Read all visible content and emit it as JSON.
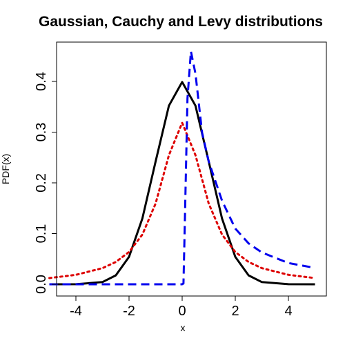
{
  "chart_data": {
    "type": "line",
    "title": "Gaussian, Cauchy and Levy distributions",
    "xlabel": "x",
    "ylabel": "PDF(x)",
    "xlim": [
      -5,
      5
    ],
    "ylim": [
      0,
      0.45
    ],
    "xticks": [
      -4,
      -2,
      0,
      2,
      4
    ],
    "yticks": [
      0.0,
      0.1,
      0.2,
      0.3,
      0.4
    ],
    "xtick_labels": [
      "-4",
      "-2",
      "0",
      "2",
      "4"
    ],
    "ytick_labels": [
      "0.0",
      "0.1",
      "0.2",
      "0.3",
      "0.4"
    ],
    "grid": false,
    "legend": "none",
    "series": [
      {
        "color": "#000000",
        "style": "solid",
        "x": [
          -5,
          -4,
          -3,
          -2.5,
          -2,
          -1.5,
          -1,
          -0.5,
          0,
          0.5,
          1,
          1.5,
          2,
          2.5,
          3,
          4,
          5
        ],
        "values": [
          0.0,
          0.0001,
          0.0044,
          0.0175,
          0.054,
          0.1295,
          0.242,
          0.3521,
          0.3989,
          0.3521,
          0.242,
          0.1295,
          0.054,
          0.0175,
          0.0044,
          0.0001,
          0.0
        ]
      },
      {
        "color": "#dd0000",
        "style": "dotted",
        "x": [
          -5,
          -4,
          -3,
          -2.5,
          -2,
          -1.5,
          -1,
          -0.5,
          0,
          0.5,
          1,
          1.5,
          2,
          2.5,
          3,
          4,
          5
        ],
        "values": [
          0.0122,
          0.0187,
          0.0318,
          0.0439,
          0.0637,
          0.0979,
          0.1592,
          0.2546,
          0.3183,
          0.2546,
          0.1592,
          0.0979,
          0.0637,
          0.0439,
          0.0318,
          0.0187,
          0.0122
        ]
      },
      {
        "color": "#0000ee",
        "style": "dashed",
        "x": [
          -5,
          -1,
          0,
          0.05,
          0.1,
          0.2,
          0.33,
          0.5,
          0.75,
          1,
          1.5,
          2,
          2.5,
          3,
          4,
          5
        ],
        "values": [
          0,
          0,
          0,
          0.0016,
          0.1233,
          0.3667,
          0.4593,
          0.4152,
          0.2989,
          0.242,
          0.1647,
          0.1098,
          0.0807,
          0.0627,
          0.0419,
          0.0322
        ]
      }
    ]
  }
}
